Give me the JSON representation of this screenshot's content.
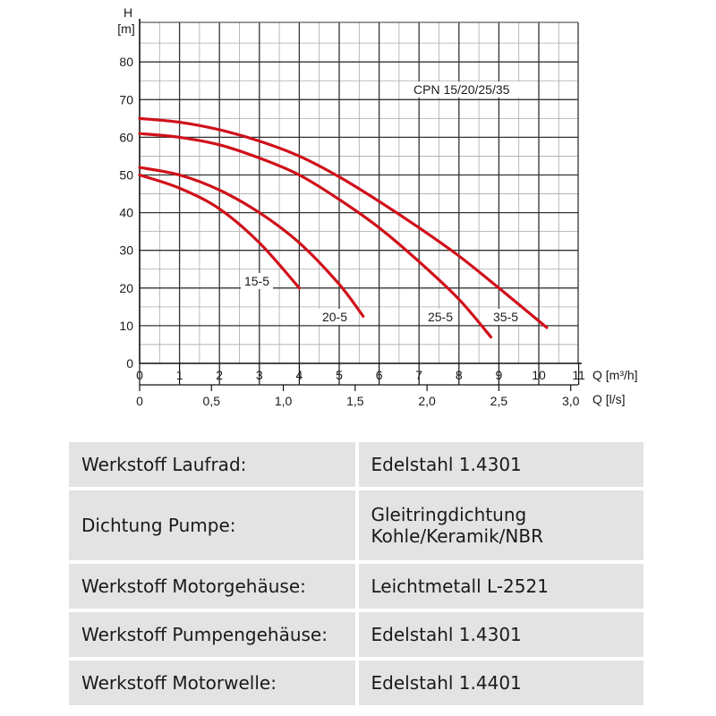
{
  "chart_data": {
    "type": "line",
    "title": "",
    "annotation": "CPN 15/20/25/35",
    "y_axis": {
      "label_top": "H",
      "unit": "[m]",
      "range": [
        0,
        90
      ],
      "ticks": [
        0,
        10,
        20,
        30,
        40,
        50,
        60,
        70,
        80
      ]
    },
    "x_axis_primary": {
      "label": "Q [m³/h]",
      "range": [
        0,
        11
      ],
      "ticks": [
        "0",
        "1",
        "2",
        "3",
        "4",
        "5",
        "6",
        "7",
        "8",
        "9",
        "10",
        "11"
      ]
    },
    "x_axis_secondary": {
      "label": "Q [l/s]",
      "ticks": [
        "0",
        "0,5",
        "1,0",
        "1,5",
        "2,0",
        "2,5",
        "3,0"
      ],
      "tick_values": [
        0,
        0.5,
        1.0,
        1.5,
        2.0,
        2.5,
        3.0
      ]
    },
    "grid": true,
    "series_color": "#d0101a",
    "series": [
      {
        "name": "15-5",
        "points": [
          [
            0,
            50
          ],
          [
            1,
            46.5
          ],
          [
            2,
            41
          ],
          [
            3,
            32
          ],
          [
            4,
            20
          ]
        ]
      },
      {
        "name": "20-5",
        "points": [
          [
            0,
            52
          ],
          [
            1,
            50
          ],
          [
            2,
            46
          ],
          [
            3,
            40
          ],
          [
            4,
            32
          ],
          [
            5,
            21
          ],
          [
            5.6,
            12.5
          ]
        ]
      },
      {
        "name": "25-5",
        "points": [
          [
            0,
            61
          ],
          [
            1,
            60
          ],
          [
            2,
            58
          ],
          [
            3,
            54.5
          ],
          [
            4,
            50
          ],
          [
            5,
            43.5
          ],
          [
            6,
            36
          ],
          [
            7,
            27
          ],
          [
            8,
            17
          ],
          [
            8.8,
            7
          ]
        ]
      },
      {
        "name": "35-5",
        "points": [
          [
            0,
            65
          ],
          [
            1,
            64
          ],
          [
            2,
            62
          ],
          [
            3,
            59
          ],
          [
            4,
            55
          ],
          [
            5,
            49.5
          ],
          [
            6,
            43
          ],
          [
            7,
            36
          ],
          [
            8,
            28.5
          ],
          [
            9,
            20
          ],
          [
            10.2,
            9.5
          ]
        ]
      }
    ]
  },
  "spec_table": [
    {
      "property": "Werkstoff Laufrad:",
      "value": [
        "Edelstahl 1.4301"
      ]
    },
    {
      "property": "Dichtung Pumpe:",
      "value": [
        "Gleitringdichtung",
        "Kohle/Keramik/NBR"
      ]
    },
    {
      "property": "Werkstoff Motorgehäuse:",
      "value": [
        "Leichtmetall L-2521"
      ]
    },
    {
      "property": "Werkstoff Pumpengehäuse:",
      "value": [
        "Edelstahl 1.4301"
      ]
    },
    {
      "property": "Werkstoff Motorwelle:",
      "value": [
        "Edelstahl 1.4401"
      ]
    }
  ]
}
